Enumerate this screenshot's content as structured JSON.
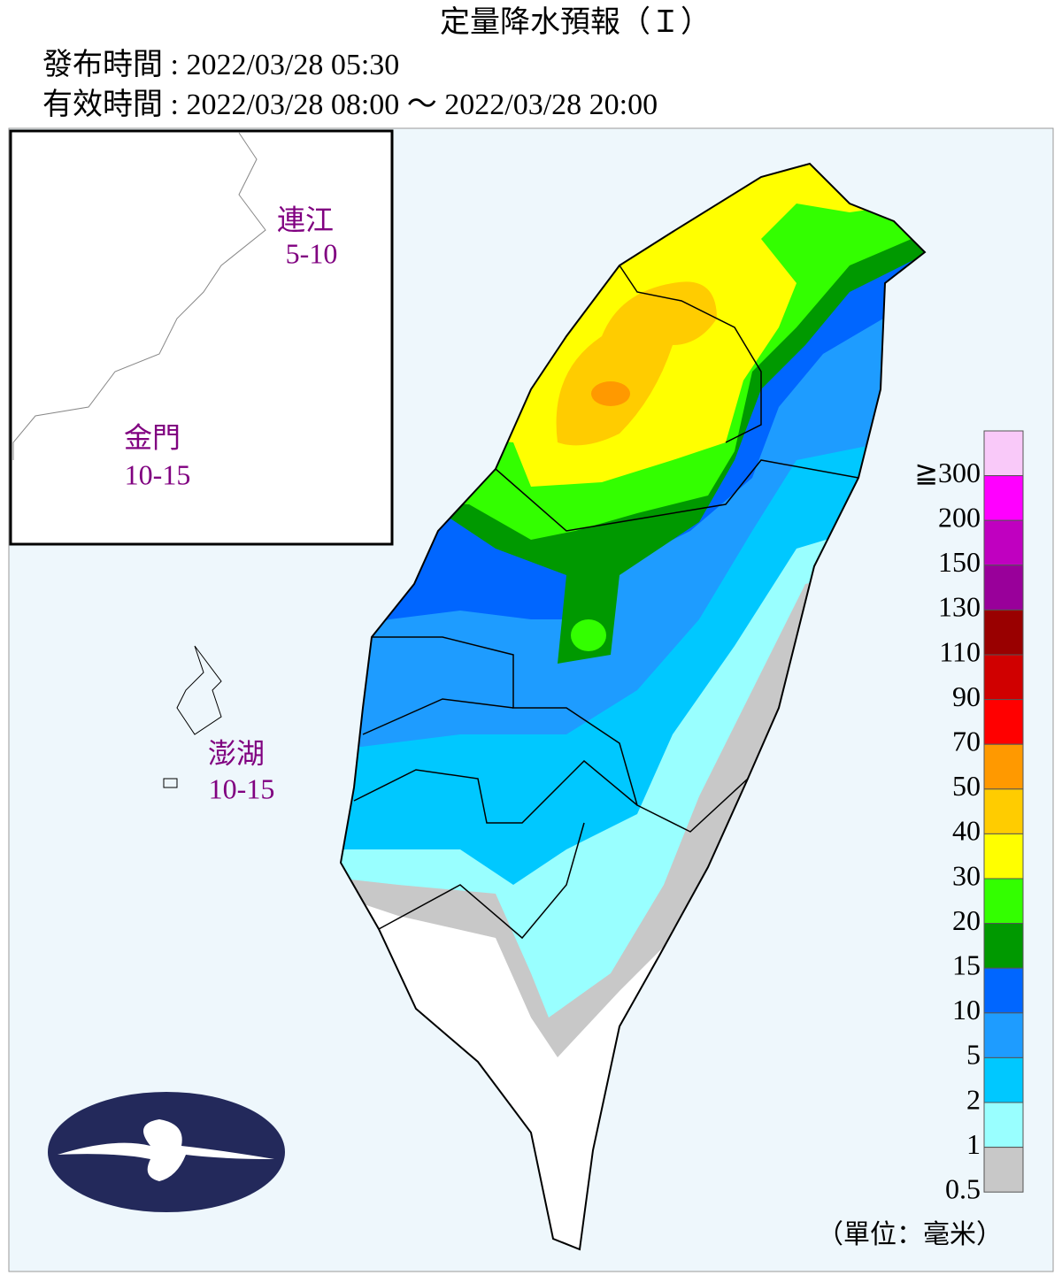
{
  "header": {
    "title": "定量降水預報（Ｉ）",
    "issued": "發布時間 : 2022/03/28 05:30",
    "valid": "有效時間 : 2022/03/28 08:00 ～ 2022/03/28 20:00"
  },
  "islands": [
    {
      "name": "連江",
      "range": "5-10"
    },
    {
      "name": "金門",
      "range": "10-15"
    },
    {
      "name": "澎湖",
      "range": "10-15"
    }
  ],
  "legend": {
    "items": [
      {
        "label": "≧300",
        "color": "#f9c9f9"
      },
      {
        "label": "200",
        "color": "#ff00ff"
      },
      {
        "label": "150",
        "color": "#c000c0"
      },
      {
        "label": "130",
        "color": "#99009a"
      },
      {
        "label": "110",
        "color": "#990000"
      },
      {
        "label": "90",
        "color": "#d00000"
      },
      {
        "label": "70",
        "color": "#ff0000"
      },
      {
        "label": "50",
        "color": "#ff9900"
      },
      {
        "label": "40",
        "color": "#ffcc00"
      },
      {
        "label": "30",
        "color": "#ffff00"
      },
      {
        "label": "20",
        "color": "#33ff00"
      },
      {
        "label": "15",
        "color": "#009900"
      },
      {
        "label": "10",
        "color": "#0066ff"
      },
      {
        "label": "5",
        "color": "#1e9cff"
      },
      {
        "label": "2",
        "color": "#00c8ff"
      },
      {
        "label": "1",
        "color": "#99ffff"
      },
      {
        "label": "0.5",
        "color": "#c8c8c8"
      }
    ],
    "unit": "（單位：毫米）"
  }
}
